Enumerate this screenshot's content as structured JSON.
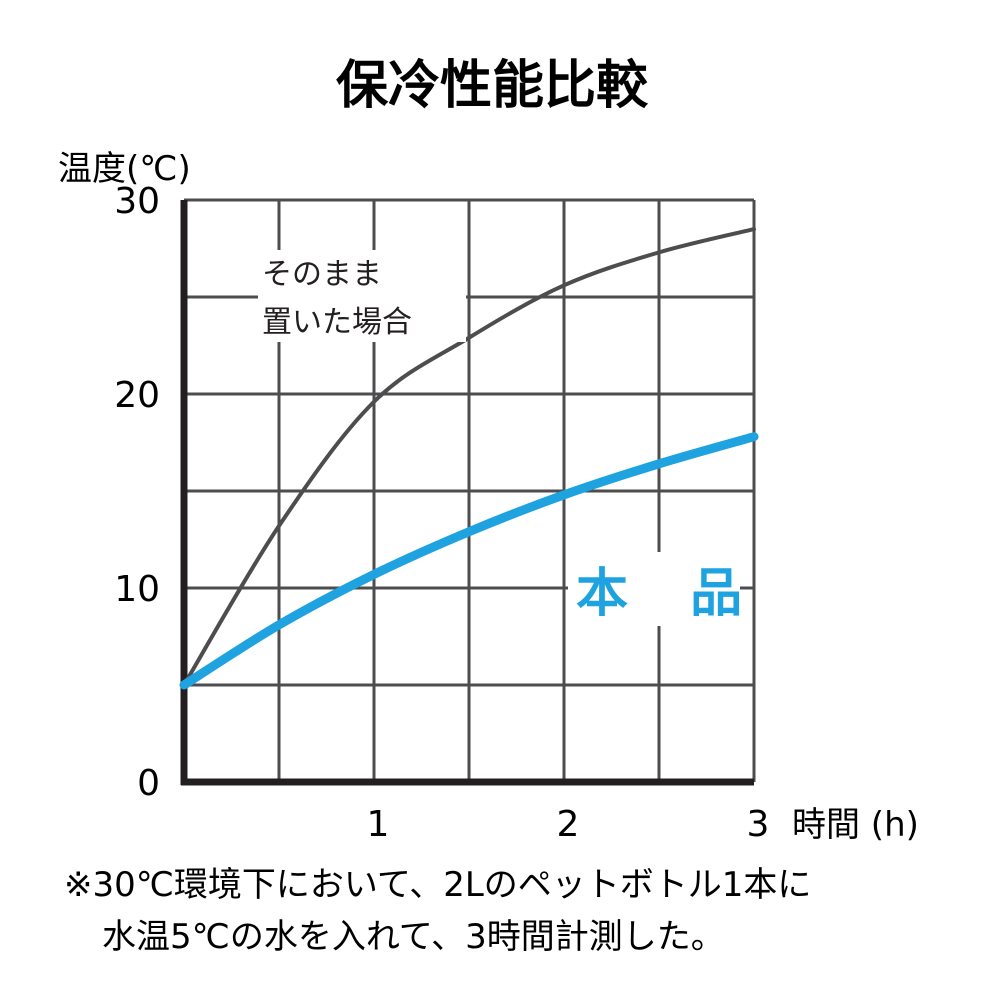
{
  "chart_data": {
    "type": "line",
    "title": "保冷性能比較",
    "ylabel": "温度(℃)",
    "xlabel": "時間 (h)",
    "xlim": [
      0,
      3
    ],
    "ylim": [
      0,
      30
    ],
    "x_ticks": [
      "1",
      "2",
      "3"
    ],
    "y_ticks": [
      "0",
      "10",
      "20",
      "30"
    ],
    "grid": true,
    "series": [
      {
        "name": "そのまま置いた場合",
        "label_lines": [
          "そのまま",
          "置いた場合"
        ],
        "color": "#4d4d4f",
        "x": [
          0,
          0.5,
          1,
          1.5,
          2,
          2.5,
          3
        ],
        "y": [
          5,
          13.2,
          19.6,
          22.9,
          25.6,
          27.3,
          28.5
        ]
      },
      {
        "name": "本 品",
        "color": "#1fa3e0",
        "x": [
          0,
          0.5,
          1,
          1.5,
          2,
          2.5,
          3
        ],
        "y": [
          5,
          8.1,
          10.7,
          12.9,
          14.8,
          16.4,
          17.8
        ]
      }
    ]
  },
  "note": {
    "line1": "※30℃環境下において、2Lのペットボトル1本に",
    "line2": "水温5℃の水を入れて、3時間計測した。"
  }
}
